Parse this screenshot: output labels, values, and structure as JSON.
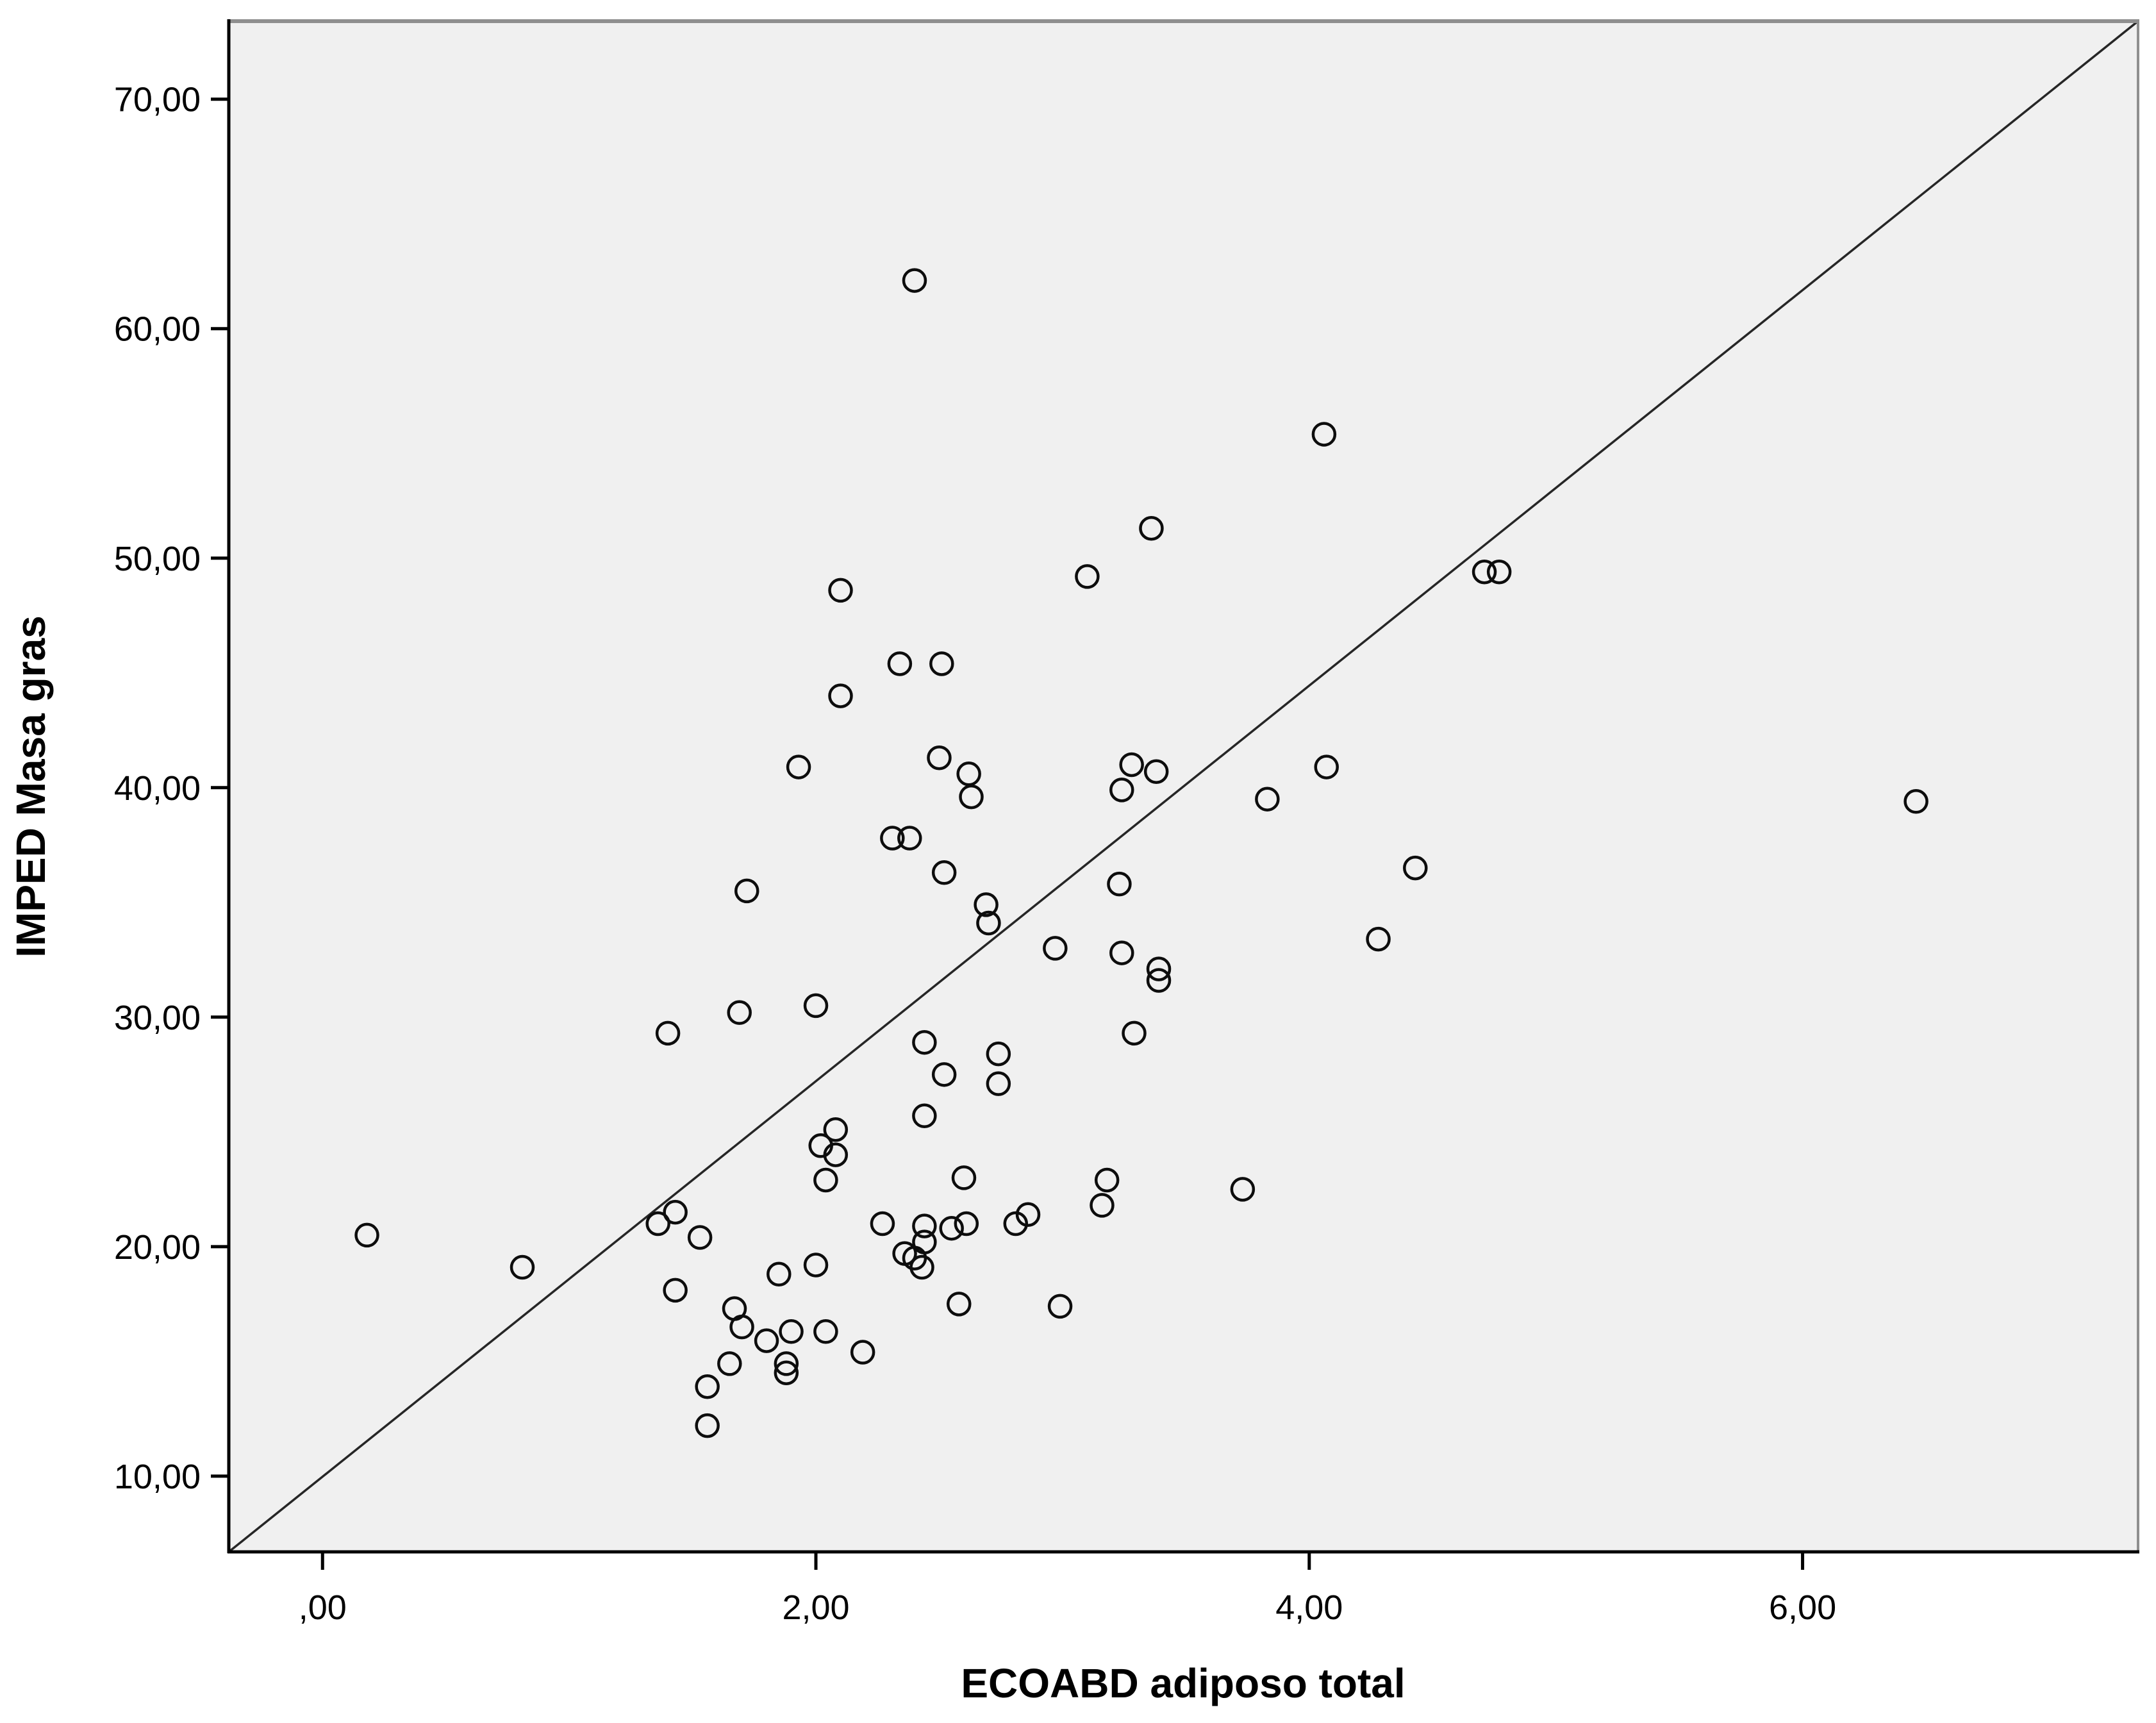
{
  "chart_data": {
    "type": "scatter",
    "title": "",
    "xlabel": "ECOABD adiposo total",
    "ylabel": "IMPED Masa gras",
    "xlim": [
      -0.38,
      7.36
    ],
    "ylim": [
      6.7,
      73.4
    ],
    "grid": false,
    "legend": null,
    "plot_background": "#f0f0f0",
    "frame_color_bottom_left": "#000000",
    "frame_color_top_right": "#8f8f8f",
    "marker": {
      "shape": "open-circle",
      "stroke": "#0d0d0d",
      "fill": "none"
    },
    "x_ticks": {
      "values": [
        0,
        2,
        4,
        6
      ],
      "labels": [
        ",00",
        "2,00",
        "4,00",
        "6,00"
      ]
    },
    "y_ticks": {
      "values": [
        10,
        20,
        30,
        40,
        50,
        60,
        70
      ],
      "labels": [
        "10,00",
        "20,00",
        "30,00",
        "40,00",
        "50,00",
        "60,00",
        "70,00"
      ]
    },
    "reference_line": {
      "type": "diagonal",
      "from_xy": [
        -0.38,
        6.7
      ],
      "to_xy": [
        7.36,
        73.4
      ],
      "color": "#262626"
    },
    "points": [
      [
        2.4,
        62.1
      ],
      [
        4.06,
        55.4
      ],
      [
        3.36,
        51.3
      ],
      [
        3.1,
        49.2
      ],
      [
        4.71,
        49.4
      ],
      [
        4.77,
        49.4
      ],
      [
        2.1,
        48.6
      ],
      [
        2.1,
        44.0
      ],
      [
        2.34,
        45.4
      ],
      [
        2.51,
        45.4
      ],
      [
        1.93,
        40.9
      ],
      [
        2.5,
        41.3
      ],
      [
        2.62,
        40.6
      ],
      [
        2.63,
        39.6
      ],
      [
        3.28,
        41.0
      ],
      [
        3.38,
        40.7
      ],
      [
        3.24,
        39.9
      ],
      [
        3.83,
        39.5
      ],
      [
        4.07,
        40.9
      ],
      [
        4.43,
        36.5
      ],
      [
        4.28,
        33.4
      ],
      [
        2.97,
        33.0
      ],
      [
        3.24,
        32.8
      ],
      [
        3.39,
        32.1
      ],
      [
        3.39,
        31.6
      ],
      [
        3.29,
        29.3
      ],
      [
        3.23,
        35.8
      ],
      [
        2.69,
        34.9
      ],
      [
        2.7,
        34.1
      ],
      [
        2.31,
        37.8
      ],
      [
        2.38,
        37.8
      ],
      [
        2.52,
        36.3
      ],
      [
        2.0,
        30.5
      ],
      [
        1.69,
        30.2
      ],
      [
        1.4,
        29.3
      ],
      [
        1.72,
        35.5
      ],
      [
        2.52,
        27.5
      ],
      [
        2.74,
        28.4
      ],
      [
        2.74,
        27.1
      ],
      [
        2.44,
        28.9
      ],
      [
        2.44,
        25.7
      ],
      [
        2.08,
        25.1
      ],
      [
        2.02,
        24.4
      ],
      [
        2.08,
        24.0
      ],
      [
        2.04,
        22.9
      ],
      [
        2.6,
        23.0
      ],
      [
        3.18,
        22.9
      ],
      [
        3.16,
        21.8
      ],
      [
        3.73,
        22.5
      ],
      [
        2.27,
        21.0
      ],
      [
        2.44,
        20.9
      ],
      [
        2.44,
        20.2
      ],
      [
        2.55,
        20.8
      ],
      [
        2.61,
        21.0
      ],
      [
        2.36,
        19.7
      ],
      [
        2.4,
        19.5
      ],
      [
        2.43,
        19.1
      ],
      [
        2.81,
        21.0
      ],
      [
        2.86,
        21.4
      ],
      [
        2.58,
        17.5
      ],
      [
        2.99,
        17.4
      ],
      [
        1.36,
        21.0
      ],
      [
        1.43,
        21.5
      ],
      [
        1.53,
        20.4
      ],
      [
        0.18,
        20.5
      ],
      [
        0.81,
        19.1
      ],
      [
        1.43,
        18.1
      ],
      [
        1.85,
        18.8
      ],
      [
        2.0,
        19.2
      ],
      [
        1.67,
        17.3
      ],
      [
        1.7,
        16.5
      ],
      [
        1.8,
        15.9
      ],
      [
        1.9,
        16.3
      ],
      [
        2.04,
        16.3
      ],
      [
        1.88,
        14.9
      ],
      [
        1.88,
        14.5
      ],
      [
        2.19,
        15.4
      ],
      [
        1.65,
        14.9
      ],
      [
        1.56,
        13.9
      ],
      [
        1.56,
        12.2
      ],
      [
        6.46,
        39.4
      ]
    ]
  }
}
